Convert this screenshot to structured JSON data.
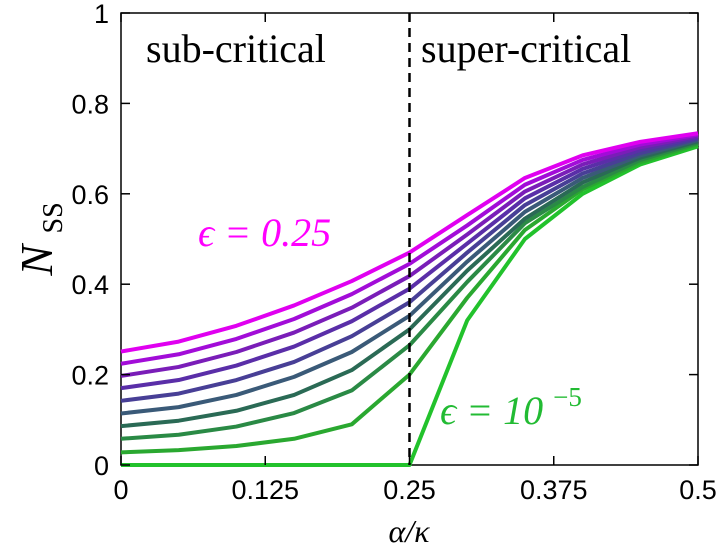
{
  "chart_data": {
    "type": "line",
    "xlabel": "α/κ",
    "ylabel_main": "N",
    "ylabel_sub": "SS",
    "xlim": [
      0,
      0.5
    ],
    "ylim": [
      0,
      1
    ],
    "xticks": [
      0,
      0.125,
      0.25,
      0.375,
      0.5
    ],
    "xtick_labels": [
      "0",
      "0.125",
      "0.25",
      "0.375",
      "0.5"
    ],
    "yticks": [
      0,
      0.2,
      0.4,
      0.6,
      0.8,
      1
    ],
    "ytick_labels": [
      "0",
      "0.2",
      "0.4",
      "0.6",
      "0.8",
      "1"
    ],
    "grid": false,
    "critical_x": 0.25,
    "regions": [
      {
        "label": "sub-critical"
      },
      {
        "label": "super-critical"
      }
    ],
    "annotations": [
      {
        "text_main": "ϵ = 0.25",
        "color": "#ff00ff"
      },
      {
        "text_main": "ϵ = 10",
        "text_sup": "−5",
        "color": "#22bb33"
      }
    ],
    "x": [
      0,
      0.05,
      0.1,
      0.15,
      0.2,
      0.25,
      0.3,
      0.35,
      0.4,
      0.45,
      0.5
    ],
    "series": [
      {
        "color": "#22c22c",
        "values": [
          0,
          0,
          0,
          0,
          0,
          0,
          0.32,
          0.5,
          0.6,
          0.665,
          0.705
        ]
      },
      {
        "color": "#2aa830",
        "values": [
          0.028,
          0.033,
          0.042,
          0.058,
          0.09,
          0.2,
          0.37,
          0.52,
          0.61,
          0.67,
          0.71
        ]
      },
      {
        "color": "#2a8a45",
        "values": [
          0.058,
          0.067,
          0.085,
          0.115,
          0.165,
          0.265,
          0.405,
          0.535,
          0.615,
          0.675,
          0.713
        ]
      },
      {
        "color": "#2a6a55",
        "values": [
          0.086,
          0.098,
          0.12,
          0.155,
          0.21,
          0.3,
          0.43,
          0.545,
          0.625,
          0.68,
          0.716
        ]
      },
      {
        "color": "#3a5a78",
        "values": [
          0.114,
          0.128,
          0.155,
          0.195,
          0.25,
          0.33,
          0.45,
          0.56,
          0.635,
          0.685,
          0.719
        ]
      },
      {
        "color": "#483f96",
        "values": [
          0.142,
          0.158,
          0.188,
          0.228,
          0.285,
          0.36,
          0.47,
          0.575,
          0.645,
          0.69,
          0.722
        ]
      },
      {
        "color": "#5a2ea8",
        "values": [
          0.17,
          0.188,
          0.22,
          0.262,
          0.318,
          0.39,
          0.49,
          0.59,
          0.655,
          0.697,
          0.725
        ]
      },
      {
        "color": "#7a1db8",
        "values": [
          0.197,
          0.217,
          0.25,
          0.293,
          0.348,
          0.418,
          0.51,
          0.605,
          0.665,
          0.703,
          0.728
        ]
      },
      {
        "color": "#a20cd8",
        "values": [
          0.224,
          0.245,
          0.279,
          0.323,
          0.378,
          0.445,
          0.53,
          0.62,
          0.675,
          0.709,
          0.731
        ]
      },
      {
        "color": "#e000f0",
        "values": [
          0.251,
          0.273,
          0.308,
          0.353,
          0.407,
          0.47,
          0.553,
          0.635,
          0.685,
          0.715,
          0.734
        ]
      }
    ]
  }
}
